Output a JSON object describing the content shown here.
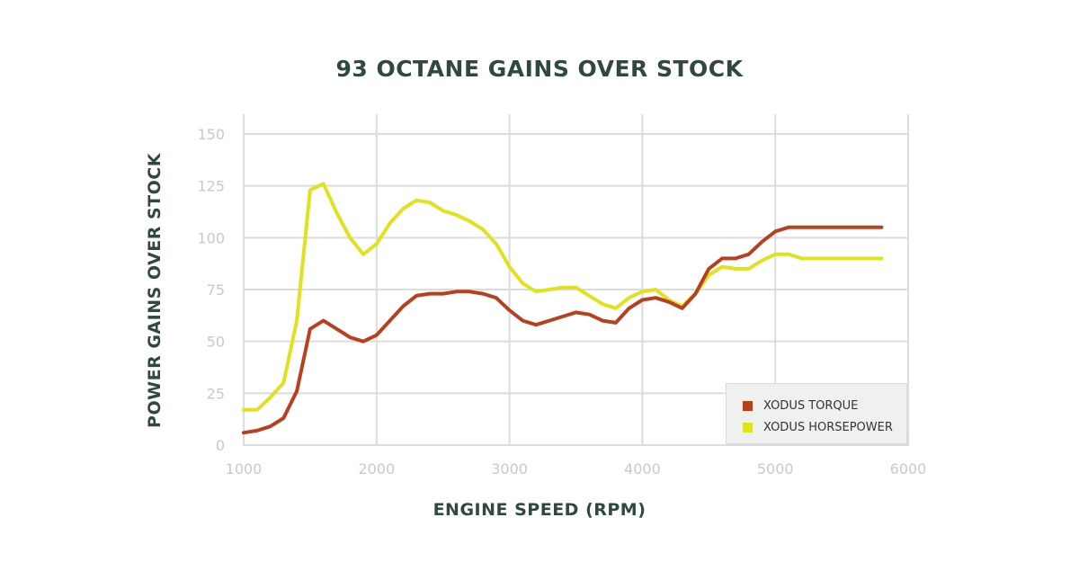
{
  "chart_data": {
    "type": "line",
    "title": "93 OCTANE GAINS OVER STOCK",
    "xlabel": "ENGINE SPEED (RPM)",
    "ylabel": "POWER GAINS OVER STOCK",
    "xlim": [
      1000,
      6000
    ],
    "ylim": [
      0,
      160
    ],
    "xticks": [
      1000,
      2000,
      3000,
      4000,
      5000,
      6000
    ],
    "yticks": [
      0,
      25,
      50,
      75,
      100,
      125,
      150
    ],
    "grid": true,
    "legend_position": "bottom-right",
    "series": [
      {
        "name": "XODUS TORQUE",
        "color": "#b8401f",
        "x": [
          1000,
          1100,
          1200,
          1300,
          1400,
          1500,
          1600,
          1700,
          1800,
          1900,
          2000,
          2100,
          2200,
          2300,
          2400,
          2500,
          2600,
          2700,
          2800,
          2900,
          3000,
          3100,
          3200,
          3300,
          3400,
          3500,
          3600,
          3700,
          3800,
          3900,
          4000,
          4100,
          4200,
          4300,
          4400,
          4500,
          4600,
          4700,
          4800,
          4900,
          5000,
          5100,
          5200,
          5300,
          5400,
          5500,
          5600,
          5700,
          5800
        ],
        "values": [
          6,
          7,
          9,
          13,
          26,
          56,
          60,
          56,
          52,
          50,
          53,
          60,
          67,
          72,
          73,
          73,
          74,
          74,
          73,
          71,
          65,
          60,
          58,
          60,
          62,
          64,
          63,
          60,
          59,
          66,
          70,
          71,
          69,
          66,
          73,
          85,
          90,
          90,
          92,
          98,
          103,
          105,
          105,
          105,
          105,
          105,
          105,
          105,
          105
        ]
      },
      {
        "name": "XODUS HORSEPOWER",
        "color": "#e0e21e",
        "x": [
          1000,
          1100,
          1200,
          1300,
          1400,
          1500,
          1600,
          1700,
          1800,
          1900,
          2000,
          2100,
          2200,
          2300,
          2400,
          2500,
          2600,
          2700,
          2800,
          2900,
          3000,
          3100,
          3200,
          3300,
          3400,
          3500,
          3600,
          3700,
          3800,
          3900,
          4000,
          4100,
          4200,
          4300,
          4400,
          4500,
          4600,
          4700,
          4800,
          4900,
          5000,
          5100,
          5200,
          5300,
          5400,
          5500,
          5600,
          5700,
          5800
        ],
        "values": [
          17,
          17,
          23,
          30,
          60,
          123,
          126,
          112,
          100,
          92,
          97,
          107,
          114,
          118,
          117,
          113,
          111,
          108,
          104,
          97,
          86,
          78,
          74,
          75,
          76,
          76,
          72,
          68,
          66,
          71,
          74,
          75,
          70,
          67,
          73,
          82,
          86,
          85,
          85,
          89,
          92,
          92,
          90,
          90,
          90,
          90,
          90,
          90,
          90
        ]
      }
    ]
  }
}
